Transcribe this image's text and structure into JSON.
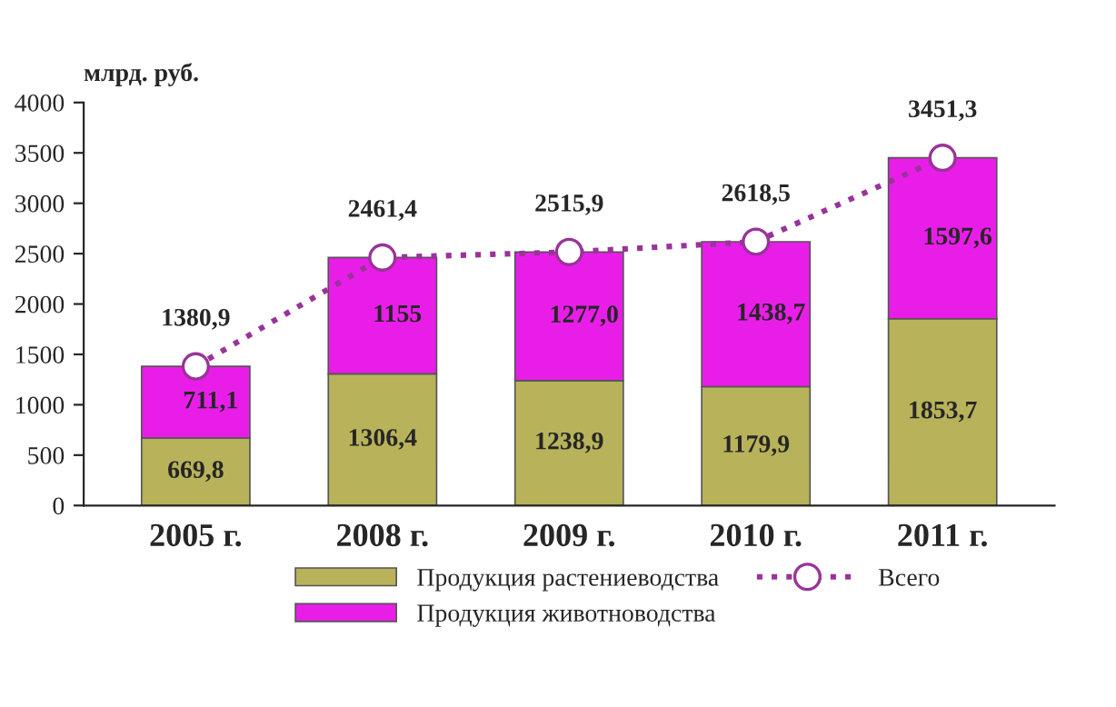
{
  "chart_data": {
    "type": "bar",
    "stacked": true,
    "ylabel": "млрд. руб.",
    "categories": [
      "2005 г.",
      "2008 г.",
      "2009 г.",
      "2010 г.",
      "2011 г."
    ],
    "series": [
      {
        "name": "Продукция растениеводства",
        "color": "#b8b25a",
        "values": [
          669.8,
          1306.4,
          1238.9,
          1179.9,
          1853.7
        ],
        "value_labels": [
          "669,8",
          "1306,4",
          "1238,9",
          "1179,9",
          "1853,7"
        ]
      },
      {
        "name": "Продукция животноводства",
        "color": "#e81ee8",
        "values": [
          711.1,
          1155,
          1277.0,
          1438.7,
          1597.6
        ],
        "value_labels": [
          "711,1",
          "1155",
          "1277,0",
          "1438,7",
          "1597,6"
        ]
      },
      {
        "name": "Всего",
        "type": "line",
        "color": "#993399",
        "marker": "circle",
        "line_style": "dotted",
        "values": [
          1380.9,
          2461.4,
          2515.9,
          2618.5,
          3451.3
        ],
        "value_labels": [
          "1380,9",
          "2461,4",
          "2515,9",
          "2618,5",
          "3451,3"
        ]
      }
    ],
    "ylim": [
      0,
      4000
    ],
    "yticks": [
      0,
      500,
      1000,
      1500,
      2000,
      2500,
      3000,
      3500,
      4000
    ],
    "grid": false,
    "legend": "bottom"
  }
}
